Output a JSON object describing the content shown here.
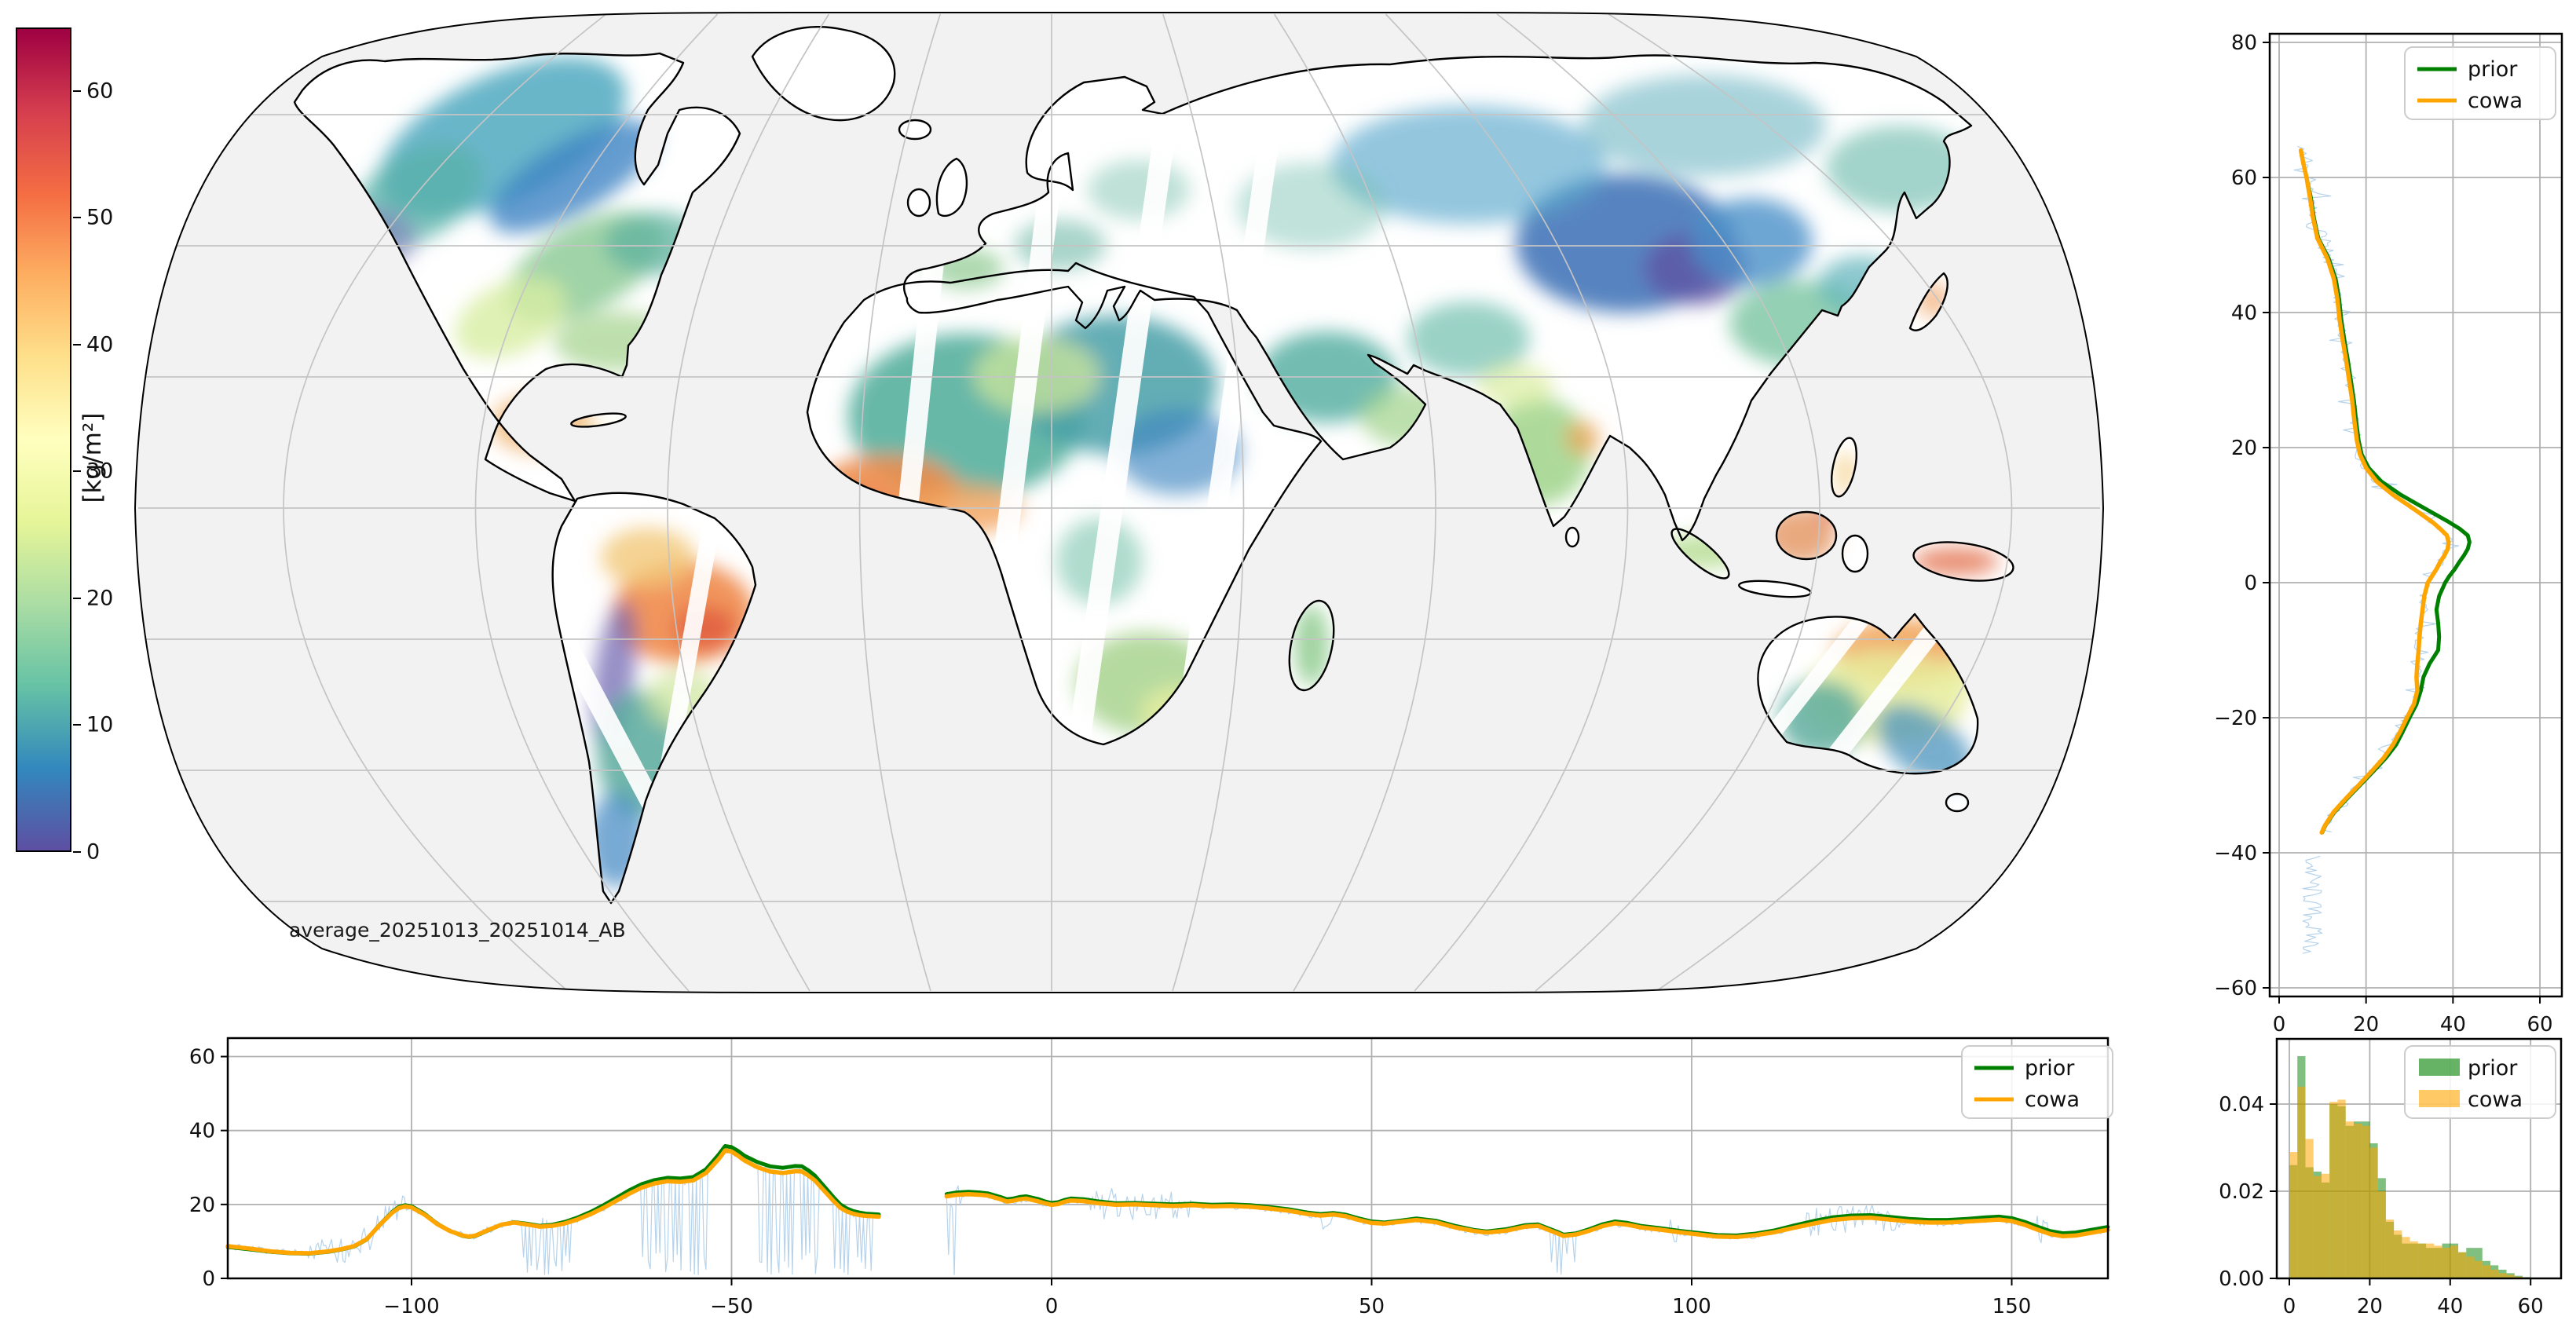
{
  "map": {
    "annotation": "average_20251013_20251014_AB",
    "projection": "winkel-tripel-like world map",
    "graticule": {
      "parallels": [
        60,
        40,
        20,
        0,
        -20,
        -40,
        -60
      ],
      "meridians": [
        -120,
        -90,
        -60,
        -30,
        0,
        30,
        60,
        90,
        120,
        150
      ]
    },
    "regions_approx_kg_m2": [
      {
        "region": "northern canada / siberia swaths",
        "value": "5-15 (blue)"
      },
      {
        "region": "central asia / tibet",
        "value": "2-8 (purple-blue)"
      },
      {
        "region": "sahara / arabia",
        "value": "15-30 (teal-green)"
      },
      {
        "region": "sahel / west africa",
        "value": "40-50 (orange-red)"
      },
      {
        "region": "eastern brazil",
        "value": "40-55 (orange-red)"
      },
      {
        "region": "southeast usa / mexico",
        "value": "25-40 (green-yellow)"
      },
      {
        "region": "australia north",
        "value": "35-45 (orange)"
      },
      {
        "region": "australia south-west",
        "value": "10-20 (teal-blue)"
      },
      {
        "region": "new guinea / borneo",
        "value": "45-60 (red)"
      }
    ]
  },
  "colorbar": {
    "label": "[kg/m²]",
    "vmin": 0,
    "vmax": 65,
    "ticks": [
      0,
      10,
      20,
      30,
      40,
      50,
      60
    ],
    "tick_labels": [
      "0",
      "10",
      "20",
      "30",
      "40",
      "50",
      "60"
    ],
    "colormap": "Spectral_r",
    "colors": [
      "#5e4fa2",
      "#3288bd",
      "#66c2a5",
      "#abdda4",
      "#e6f598",
      "#ffffbf",
      "#fee08b",
      "#fdae61",
      "#f46d43",
      "#d53e4f",
      "#9e0142"
    ]
  },
  "series_colors": {
    "prior": "#008000",
    "cowa": "#ffa500",
    "raw": "#a9cbe8"
  },
  "chart_data": [
    {
      "id": "zonal_mean_profile",
      "type": "line",
      "orientation": "vertical",
      "xlabel": "",
      "ylabel": "",
      "legend": [
        "prior",
        "cowa"
      ],
      "legend_position": "upper right",
      "xlim": [
        -2.2,
        65
      ],
      "ylim": [
        -61.3,
        81.3
      ],
      "grid": true,
      "xticks": [
        0,
        20,
        40,
        60
      ],
      "xtick_labels": [
        "0",
        "20",
        "40",
        "60"
      ],
      "yticks": [
        80,
        60,
        40,
        20,
        0,
        -20,
        -40,
        -60
      ],
      "ytick_labels": [
        "80",
        "60",
        "40",
        "20",
        "0",
        "−20",
        "−40",
        "−60"
      ],
      "points_lat_prior_cowa": [
        [
          64,
          5.0,
          5.0
        ],
        [
          62,
          5.6,
          5.6
        ],
        [
          60,
          6.3,
          6.3
        ],
        [
          57,
          7.3,
          7.1
        ],
        [
          54,
          8.0,
          7.8
        ],
        [
          51,
          9.0,
          8.8
        ],
        [
          48,
          11.4,
          11.1
        ],
        [
          45,
          13.0,
          12.6
        ],
        [
          42,
          13.8,
          13.4
        ],
        [
          39,
          14.3,
          13.9
        ],
        [
          36,
          15.0,
          14.6
        ],
        [
          33,
          15.8,
          15.4
        ],
        [
          30,
          16.5,
          16.1
        ],
        [
          27,
          17.2,
          16.8
        ],
        [
          24,
          17.7,
          17.3
        ],
        [
          21,
          18.3,
          17.9
        ],
        [
          19,
          19.0,
          18.6
        ],
        [
          17,
          20.6,
          20.0
        ],
        [
          15,
          23.5,
          22.4
        ],
        [
          13,
          28.0,
          26.2
        ],
        [
          11,
          33.5,
          30.8
        ],
        [
          9,
          39.0,
          35.2
        ],
        [
          8,
          41.5,
          37.0
        ],
        [
          7,
          43.4,
          38.6
        ],
        [
          6,
          43.8,
          39.0
        ],
        [
          5,
          43.4,
          38.8
        ],
        [
          4,
          42.5,
          38.0
        ],
        [
          3,
          41.4,
          37.0
        ],
        [
          2,
          40.4,
          36.2
        ],
        [
          1,
          39.2,
          35.2
        ],
        [
          0,
          38.2,
          34.2
        ],
        [
          -2,
          36.8,
          33.4
        ],
        [
          -4,
          36.2,
          33.0
        ],
        [
          -6,
          36.6,
          32.6
        ],
        [
          -8,
          36.8,
          32.3
        ],
        [
          -10,
          36.6,
          32.1
        ],
        [
          -12,
          34.6,
          31.8
        ],
        [
          -14,
          33.2,
          31.6
        ],
        [
          -16,
          32.6,
          31.8
        ],
        [
          -18,
          31.6,
          31.0
        ],
        [
          -20,
          30.0,
          29.4
        ],
        [
          -22,
          28.5,
          27.9
        ],
        [
          -24,
          26.9,
          26.2
        ],
        [
          -26,
          24.5,
          24.0
        ],
        [
          -28,
          21.6,
          21.2
        ],
        [
          -30,
          18.6,
          18.3
        ],
        [
          -32,
          15.6,
          15.3
        ],
        [
          -34,
          12.7,
          12.5
        ],
        [
          -36,
          10.6,
          10.5
        ],
        [
          -37,
          9.9,
          9.8
        ]
      ],
      "raw_noise_extent_lat": [
        64.6,
        -55
      ]
    },
    {
      "id": "meridional_mean_profile",
      "type": "line",
      "xlabel": "",
      "ylabel": "",
      "legend": [
        "prior",
        "cowa"
      ],
      "legend_position": "upper right",
      "xlim": [
        -128.7,
        165
      ],
      "ylim": [
        0,
        65
      ],
      "grid": true,
      "xticks": [
        -100,
        -50,
        0,
        50,
        100,
        150
      ],
      "xtick_labels": [
        "−100",
        "−50",
        "0",
        "50",
        "100",
        "150"
      ],
      "yticks": [
        0,
        20,
        40,
        60
      ],
      "ytick_labels": [
        "0",
        "20",
        "40",
        "60"
      ],
      "segments_lon_prior_cowa": [
        [
          [
            -128.7,
            8.5,
            8.7
          ],
          [
            -125,
            7.8,
            8.0
          ],
          [
            -122,
            7.2,
            7.3
          ],
          [
            -119,
            6.8,
            6.9
          ],
          [
            -116,
            6.7,
            6.8
          ],
          [
            -113,
            7.2,
            7.3
          ],
          [
            -111,
            7.8,
            7.9
          ],
          [
            -109,
            8.6,
            8.7
          ],
          [
            -107,
            10.5,
            10.6
          ],
          [
            -105,
            14.5,
            14.4
          ],
          [
            -103,
            18.0,
            17.8
          ],
          [
            -102,
            19.3,
            19.0
          ],
          [
            -101,
            19.8,
            19.5
          ],
          [
            -100,
            19.5,
            19.2
          ],
          [
            -98,
            17.5,
            17.3
          ],
          [
            -96,
            14.8,
            14.7
          ],
          [
            -94,
            12.8,
            12.8
          ],
          [
            -92,
            11.5,
            11.6
          ],
          [
            -91,
            11.2,
            11.3
          ],
          [
            -90,
            11.5,
            11.6
          ],
          [
            -88,
            13.0,
            13.1
          ],
          [
            -86,
            14.5,
            14.5
          ],
          [
            -84,
            15.2,
            15.1
          ],
          [
            -82,
            14.8,
            14.6
          ],
          [
            -80,
            14.2,
            14.0
          ],
          [
            -78,
            14.5,
            14.2
          ],
          [
            -76,
            15.3,
            14.9
          ],
          [
            -74,
            16.5,
            16.0
          ],
          [
            -72,
            18.0,
            17.4
          ],
          [
            -70,
            19.8,
            19.1
          ],
          [
            -68,
            21.8,
            21.0
          ],
          [
            -66,
            23.8,
            22.9
          ],
          [
            -64,
            25.5,
            24.6
          ],
          [
            -62,
            26.6,
            25.7
          ],
          [
            -60,
            27.2,
            26.3
          ],
          [
            -58,
            27.0,
            26.1
          ],
          [
            -56,
            27.4,
            26.5
          ],
          [
            -54,
            29.5,
            28.5
          ],
          [
            -52,
            33.5,
            32.3
          ],
          [
            -51,
            35.8,
            34.6
          ],
          [
            -50,
            35.5,
            34.3
          ],
          [
            -49,
            34.5,
            33.2
          ],
          [
            -48,
            33.2,
            31.9
          ],
          [
            -46,
            31.5,
            30.1
          ],
          [
            -44,
            30.3,
            28.9
          ],
          [
            -42,
            29.9,
            28.5
          ],
          [
            -40,
            30.4,
            29.0
          ],
          [
            -39,
            30.3,
            28.9
          ],
          [
            -38,
            29.2,
            27.8
          ],
          [
            -37,
            27.8,
            26.5
          ],
          [
            -36,
            25.8,
            24.6
          ],
          [
            -35,
            23.8,
            22.7
          ],
          [
            -34,
            21.8,
            20.8
          ],
          [
            -33,
            20.0,
            19.1
          ],
          [
            -32,
            18.9,
            18.1
          ],
          [
            -31,
            18.2,
            17.5
          ],
          [
            -30,
            17.8,
            17.1
          ],
          [
            -29,
            17.5,
            16.9
          ],
          [
            -28,
            17.4,
            16.8
          ],
          [
            -27,
            17.3,
            16.7
          ]
        ],
        [
          [
            -16.4,
            22.8,
            22.2
          ],
          [
            -15,
            23.2,
            22.6
          ],
          [
            -13,
            23.4,
            22.8
          ],
          [
            -11,
            23.2,
            22.6
          ],
          [
            -10,
            23.0,
            22.4
          ],
          [
            -8,
            22.0,
            21.4
          ],
          [
            -7,
            21.4,
            20.8
          ],
          [
            -6,
            21.6,
            21.0
          ],
          [
            -5,
            22.0,
            21.4
          ],
          [
            -4,
            22.2,
            21.6
          ],
          [
            -2,
            21.4,
            20.8
          ],
          [
            -1,
            20.8,
            20.3
          ],
          [
            0,
            20.4,
            19.9
          ],
          [
            1,
            20.6,
            20.1
          ],
          [
            2,
            21.2,
            20.7
          ],
          [
            3,
            21.6,
            21.1
          ],
          [
            5,
            21.4,
            20.9
          ],
          [
            7,
            20.9,
            20.4
          ],
          [
            10,
            20.3,
            19.9
          ],
          [
            13,
            20.4,
            20.0
          ],
          [
            16,
            20.2,
            19.8
          ],
          [
            19,
            20.0,
            19.6
          ],
          [
            22,
            20.2,
            19.8
          ],
          [
            25,
            19.9,
            19.5
          ],
          [
            28,
            20.0,
            19.6
          ],
          [
            31,
            19.8,
            19.4
          ],
          [
            34,
            19.3,
            18.9
          ],
          [
            37,
            18.7,
            18.3
          ],
          [
            40,
            17.8,
            17.4
          ],
          [
            42,
            17.4,
            17.0
          ],
          [
            44,
            17.7,
            17.3
          ],
          [
            46,
            17.2,
            16.8
          ],
          [
            48,
            16.2,
            15.8
          ],
          [
            50,
            15.4,
            15.0
          ],
          [
            52,
            15.1,
            14.8
          ],
          [
            54,
            15.5,
            15.2
          ],
          [
            57,
            16.2,
            15.8
          ],
          [
            60,
            15.6,
            15.2
          ],
          [
            63,
            14.2,
            13.8
          ],
          [
            66,
            13.1,
            12.8
          ],
          [
            68,
            12.7,
            12.4
          ],
          [
            71,
            13.3,
            12.9
          ],
          [
            74,
            14.4,
            14.0
          ],
          [
            76,
            14.6,
            14.2
          ],
          [
            79,
            12.6,
            12.2
          ],
          [
            80,
            11.8,
            11.5
          ],
          [
            82,
            12.2,
            11.9
          ],
          [
            84,
            13.3,
            12.9
          ],
          [
            86,
            14.6,
            14.1
          ],
          [
            88,
            15.4,
            14.9
          ],
          [
            90,
            15.0,
            14.5
          ],
          [
            92,
            14.2,
            13.8
          ],
          [
            95,
            13.6,
            13.2
          ],
          [
            98,
            12.9,
            12.5
          ],
          [
            101,
            12.3,
            11.9
          ],
          [
            104,
            11.7,
            11.3
          ],
          [
            107,
            11.6,
            11.2
          ],
          [
            110,
            12.1,
            11.7
          ],
          [
            113,
            13.0,
            12.5
          ],
          [
            116,
            14.3,
            13.7
          ],
          [
            119,
            15.5,
            14.8
          ],
          [
            122,
            16.5,
            15.8
          ],
          [
            125,
            17.0,
            16.3
          ],
          [
            128,
            17.1,
            16.4
          ],
          [
            131,
            16.6,
            15.9
          ],
          [
            134,
            16.1,
            15.4
          ],
          [
            137,
            15.8,
            15.1
          ],
          [
            140,
            15.8,
            15.1
          ],
          [
            143,
            16.1,
            15.4
          ],
          [
            146,
            16.5,
            15.7
          ],
          [
            148,
            16.7,
            15.9
          ],
          [
            150,
            16.3,
            15.5
          ],
          [
            152,
            15.3,
            14.5
          ],
          [
            154,
            14.0,
            13.2
          ],
          [
            156,
            12.8,
            12.0
          ],
          [
            158,
            12.2,
            11.4
          ],
          [
            160,
            12.4,
            11.6
          ],
          [
            162,
            13.0,
            12.2
          ],
          [
            164,
            13.6,
            12.8
          ],
          [
            165,
            13.9,
            13.1
          ]
        ]
      ]
    },
    {
      "id": "histogram",
      "type": "bar",
      "legend": [
        "prior",
        "cowa"
      ],
      "legend_position": "upper right",
      "bin_start": 0,
      "bin_width": 2,
      "grid": true,
      "xlim": [
        -3.1,
        67.6
      ],
      "ylim": [
        0,
        0.0549
      ],
      "xticks": [
        0,
        20,
        40,
        60
      ],
      "xtick_labels": [
        "0",
        "20",
        "40",
        "60"
      ],
      "yticks": [
        0.0,
        0.02,
        0.04
      ],
      "ytick_labels": [
        "0.00",
        "0.02",
        "0.04"
      ],
      "prior": [
        0.026,
        0.051,
        0.0255,
        0.0245,
        0.022,
        0.04,
        0.0395,
        0.035,
        0.036,
        0.036,
        0.031,
        0.023,
        0.013,
        0.01,
        0.008,
        0.008,
        0.008,
        0.007,
        0.007,
        0.008,
        0.008,
        0.006,
        0.007,
        0.007,
        0.004,
        0.003,
        0.002,
        0.0012,
        0.0006,
        0.0003
      ],
      "cowa": [
        0.029,
        0.044,
        0.032,
        0.0235,
        0.024,
        0.0405,
        0.041,
        0.036,
        0.0355,
        0.035,
        0.03,
        0.02,
        0.0135,
        0.011,
        0.0095,
        0.0085,
        0.008,
        0.008,
        0.0075,
        0.007,
        0.0075,
        0.006,
        0.005,
        0.004,
        0.003,
        0.002,
        0.0012,
        0.0008,
        0.0004,
        0.0002
      ]
    }
  ]
}
